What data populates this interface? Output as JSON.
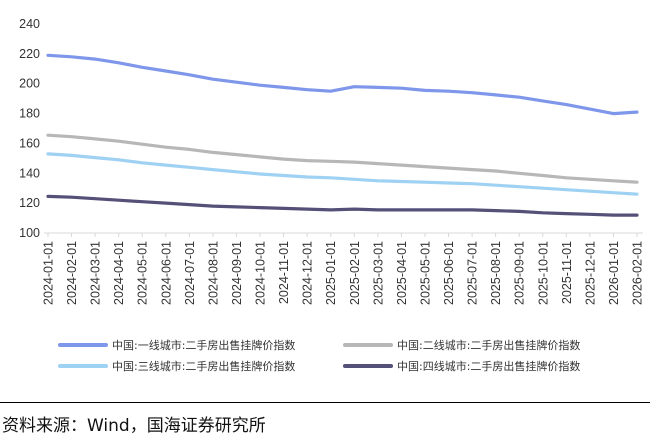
{
  "chart_data": {
    "type": "line",
    "title": "",
    "xlabel": "",
    "ylabel": "",
    "ylim": [
      100,
      240
    ],
    "yticks": [
      "100",
      "120",
      "140",
      "160",
      "180",
      "200",
      "220",
      "240"
    ],
    "grid": false,
    "legend_position": "bottom",
    "categories": [
      "2024-01-01",
      "2024-02-01",
      "2024-03-01",
      "2024-04-01",
      "2024-05-01",
      "2024-06-01",
      "2024-07-01",
      "2024-08-01",
      "2024-09-01",
      "2024-10-01",
      "2024-11-01",
      "2024-12-01",
      "2025-01-01",
      "2025-02-01",
      "2025-03-01",
      "2025-04-01",
      "2025-05-01",
      "2025-06-01",
      "2025-07-01",
      "2025-08-01",
      "2025-09-01",
      "2025-10-01",
      "2025-11-01",
      "2025-12-01",
      "2026-01-01",
      "2026-02-01"
    ],
    "series": [
      {
        "name": "中国:一线城市:二手房出售挂牌价指数",
        "color": "#7f97ea",
        "values": [
          219,
          218,
          216.5,
          214,
          211,
          208.5,
          206,
          203,
          201,
          199,
          197.5,
          196,
          195,
          198,
          197.5,
          197,
          195.5,
          195,
          194,
          192.5,
          191,
          188.5,
          186,
          183,
          180,
          181
        ]
      },
      {
        "name": "中国:二线城市:二手房出售挂牌价指数",
        "color": "#b7b7b7",
        "values": [
          165.5,
          164.5,
          163,
          161.5,
          159.5,
          157.5,
          156,
          154,
          152.5,
          151,
          149.5,
          148.5,
          148,
          147.5,
          146.5,
          145.5,
          144.5,
          143.5,
          142.5,
          141.5,
          140,
          138.5,
          137,
          136,
          135,
          134
        ]
      },
      {
        "name": "中国:三线城市:二手房出售挂牌价指数",
        "color": "#9fd1f3",
        "values": [
          153,
          152,
          150.5,
          149,
          147,
          145.5,
          144,
          142.5,
          141,
          139.5,
          138.5,
          137.5,
          137,
          136,
          135,
          134.5,
          134,
          133.5,
          133,
          132,
          131,
          130,
          129,
          128,
          127,
          126
        ]
      },
      {
        "name": "中国:四线城市:二手房出售挂牌价指数",
        "color": "#545078",
        "values": [
          124.5,
          124,
          123,
          122,
          121,
          120,
          119,
          118,
          117.5,
          117,
          116.5,
          116,
          115.5,
          116,
          115.5,
          115.5,
          115.5,
          115.5,
          115.5,
          115,
          114.5,
          113.5,
          113,
          112.5,
          112,
          112
        ]
      }
    ]
  },
  "source": "资料来源：Wind，国海证券研究所"
}
